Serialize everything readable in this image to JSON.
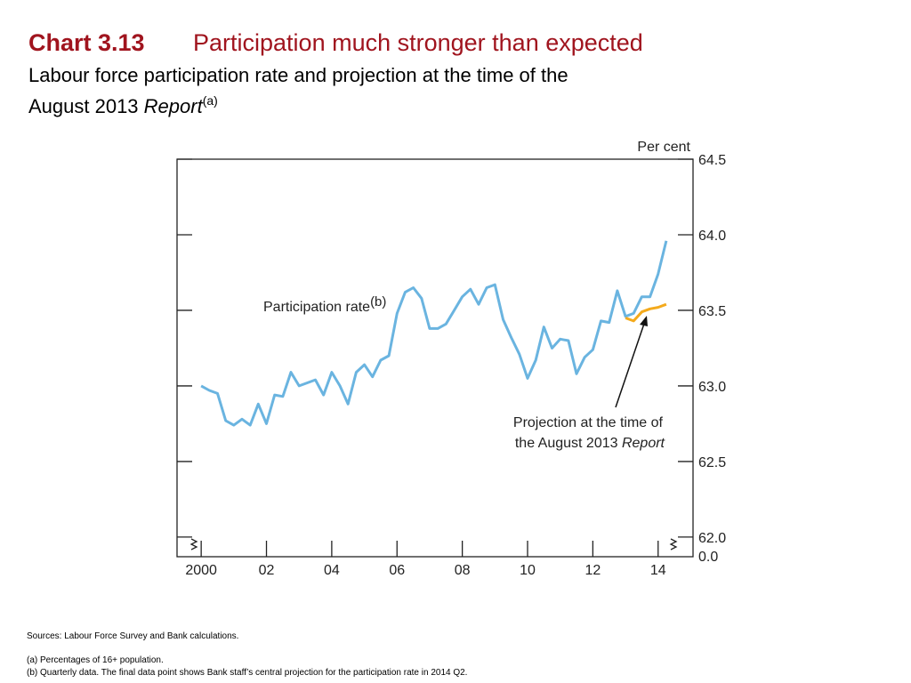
{
  "chart_data": {
    "type": "line",
    "title_prefix": "Chart 3.13",
    "title": "Participation much stronger than expected",
    "subtitle_line1": "Labour force participation rate and projection at the time of the",
    "subtitle_line2": "August 2013 ",
    "subtitle_italic": "Report",
    "subtitle_note": "(a)",
    "y_label": "Per cent",
    "series": [
      {
        "name": "Participation rate",
        "name_note": "(b)",
        "color": "#6ab4e0",
        "x": [
          2000,
          2000.25,
          2000.5,
          2000.75,
          2001,
          2001.25,
          2001.5,
          2001.75,
          2002,
          2002.25,
          2002.5,
          2002.75,
          2003,
          2003.25,
          2003.5,
          2003.75,
          2004,
          2004.25,
          2004.5,
          2004.75,
          2005,
          2005.25,
          2005.5,
          2005.75,
          2006,
          2006.25,
          2006.5,
          2006.75,
          2007,
          2007.25,
          2007.5,
          2007.75,
          2008,
          2008.25,
          2008.5,
          2008.75,
          2009,
          2009.25,
          2009.5,
          2009.75,
          2010,
          2010.25,
          2010.5,
          2010.75,
          2011,
          2011.25,
          2011.5,
          2011.75,
          2012,
          2012.25,
          2012.5,
          2012.75,
          2013,
          2013.25,
          2013.5,
          2013.75,
          2014,
          2014.25
        ],
        "values": [
          63.0,
          62.97,
          62.95,
          62.77,
          62.74,
          62.78,
          62.74,
          62.88,
          62.75,
          62.94,
          62.93,
          63.09,
          63.0,
          63.02,
          63.04,
          62.94,
          63.09,
          63.0,
          62.88,
          63.09,
          63.14,
          63.06,
          63.17,
          63.2,
          63.48,
          63.62,
          63.65,
          63.58,
          63.38,
          63.38,
          63.41,
          63.5,
          63.59,
          63.64,
          63.54,
          63.65,
          63.67,
          63.44,
          63.32,
          63.21,
          63.05,
          63.17,
          63.39,
          63.25,
          63.31,
          63.3,
          63.08,
          63.19,
          63.24,
          63.43,
          63.42,
          63.63,
          63.46,
          63.48,
          63.59,
          63.59,
          63.74,
          63.96
        ]
      },
      {
        "name": "Projection at the time of",
        "name_line2": "the August 2013 ",
        "name_italic": "Report",
        "color": "#f4aa1c",
        "x": [
          2013,
          2013.25,
          2013.5,
          2013.75,
          2014,
          2014.25
        ],
        "values": [
          63.45,
          63.43,
          63.49,
          63.51,
          63.52,
          63.54
        ]
      }
    ],
    "xlim": [
      1999.26,
      2015.07
    ],
    "xticks": [
      {
        "value": 2000,
        "label": "2000"
      },
      {
        "value": 2002,
        "label": "02"
      },
      {
        "value": 2004,
        "label": "04"
      },
      {
        "value": 2006,
        "label": "06"
      },
      {
        "value": 2008,
        "label": "08"
      },
      {
        "value": 2010,
        "label": "10"
      },
      {
        "value": 2012,
        "label": "12"
      },
      {
        "value": 2014,
        "label": "14"
      }
    ],
    "ylim": [
      61.87,
      64.5
    ],
    "yticks": [
      {
        "value": 62,
        "label": "62.0"
      },
      {
        "value": 62.5,
        "label": "62.5"
      },
      {
        "value": 63,
        "label": "63.0"
      },
      {
        "value": 63.5,
        "label": "63.5"
      },
      {
        "value": 64,
        "label": "64.0"
      },
      {
        "value": 64.5,
        "label": "64.5"
      }
    ],
    "y_break_label": "0.0",
    "sources": "Sources:  Labour Force Survey and Bank calculations.",
    "note_a": "(a)  Percentages of 16+ population.",
    "note_b": "(b)  Quarterly data.  The final data point shows Bank staff’s central projection for the participation rate in 2014 Q2."
  }
}
